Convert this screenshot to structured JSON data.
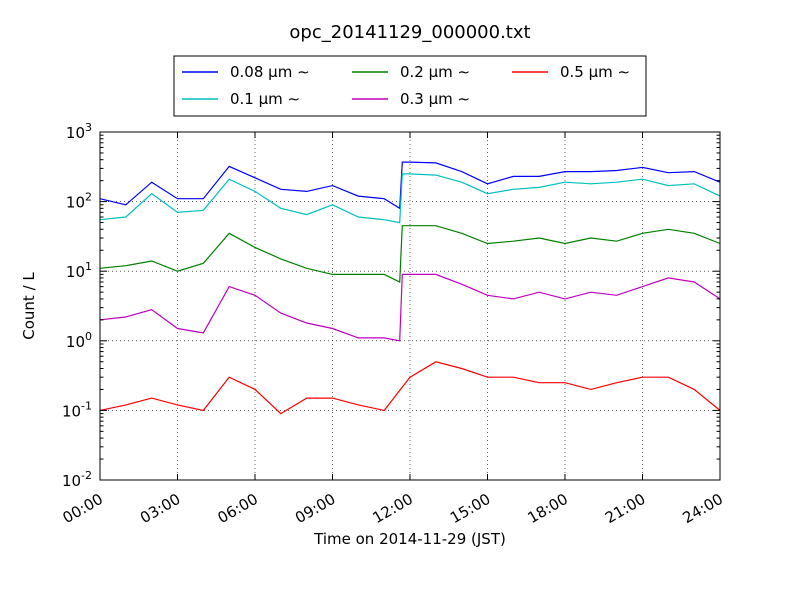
{
  "chart_data": {
    "type": "line",
    "title": "opc_20141129_000000.txt",
    "xlabel": "Time on 2014-11-29 (JST)",
    "ylabel": "Count / L",
    "x_unit": "hours",
    "xlim": [
      0,
      24
    ],
    "ylim": [
      0.01,
      1000
    ],
    "yscale": "log",
    "grid": true,
    "legend_position": "top-center, above plot",
    "x_ticks": [
      {
        "value": 0,
        "label": "00:00"
      },
      {
        "value": 3,
        "label": "03:00"
      },
      {
        "value": 6,
        "label": "06:00"
      },
      {
        "value": 9,
        "label": "09:00"
      },
      {
        "value": 12,
        "label": "12:00"
      },
      {
        "value": 15,
        "label": "15:00"
      },
      {
        "value": 18,
        "label": "18:00"
      },
      {
        "value": 21,
        "label": "21:00"
      },
      {
        "value": 24,
        "label": "24:00"
      }
    ],
    "y_ticks": [
      {
        "value": 0.01,
        "base": "10",
        "exp": "-2"
      },
      {
        "value": 0.1,
        "base": "10",
        "exp": "-1"
      },
      {
        "value": 1,
        "base": "10",
        "exp": "0"
      },
      {
        "value": 10,
        "base": "10",
        "exp": "1"
      },
      {
        "value": 100,
        "base": "10",
        "exp": "2"
      },
      {
        "value": 1000,
        "base": "10",
        "exp": "3"
      }
    ],
    "series": [
      {
        "name": "0.08 μm ∼",
        "color": "#0000ff",
        "x": [
          0,
          1,
          2,
          3,
          4,
          5,
          6,
          7,
          8,
          9,
          10,
          11,
          11.6,
          11.7,
          12,
          13,
          14,
          15,
          16,
          17,
          18,
          19,
          20,
          21,
          22,
          23,
          24
        ],
        "values": [
          110,
          90,
          190,
          110,
          110,
          320,
          220,
          150,
          140,
          170,
          120,
          110,
          80,
          370,
          370,
          360,
          270,
          180,
          230,
          230,
          270,
          270,
          280,
          310,
          260,
          270,
          190
        ]
      },
      {
        "name": "0.1 μm ∼",
        "color": "#00bfbf",
        "x": [
          0,
          1,
          2,
          3,
          4,
          5,
          6,
          7,
          8,
          9,
          10,
          11,
          11.6,
          11.7,
          12,
          13,
          14,
          15,
          16,
          17,
          18,
          19,
          20,
          21,
          22,
          23,
          24
        ],
        "values": [
          55,
          60,
          130,
          70,
          75,
          210,
          140,
          80,
          65,
          90,
          60,
          55,
          50,
          250,
          250,
          240,
          190,
          130,
          150,
          160,
          190,
          180,
          190,
          210,
          170,
          180,
          120
        ]
      },
      {
        "name": "0.2 μm ∼",
        "color": "#008000",
        "x": [
          0,
          1,
          2,
          3,
          4,
          5,
          6,
          7,
          8,
          9,
          10,
          11,
          11.6,
          11.7,
          12,
          13,
          14,
          15,
          16,
          17,
          18,
          19,
          20,
          21,
          22,
          23,
          24
        ],
        "values": [
          11,
          12,
          14,
          10,
          13,
          35,
          22,
          15,
          11,
          9,
          9,
          9,
          7,
          45,
          45,
          45,
          35,
          25,
          27,
          30,
          25,
          30,
          27,
          35,
          40,
          35,
          25
        ]
      },
      {
        "name": "0.3 μm ∼",
        "color": "#bf00bf",
        "x": [
          0,
          1,
          2,
          3,
          4,
          5,
          6,
          7,
          8,
          9,
          10,
          11,
          11.6,
          11.7,
          12,
          13,
          14,
          15,
          16,
          17,
          18,
          19,
          20,
          21,
          22,
          23,
          24
        ],
        "values": [
          2,
          2.2,
          2.8,
          1.5,
          1.3,
          6,
          4.5,
          2.5,
          1.8,
          1.5,
          1.1,
          1.1,
          1.0,
          9,
          9,
          9,
          6.5,
          4.5,
          4,
          5,
          4,
          5,
          4.5,
          6,
          8,
          7,
          4
        ]
      },
      {
        "name": "0.5 μm ∼",
        "color": "#ff0000",
        "x": [
          0,
          1,
          2,
          3,
          4,
          5,
          6,
          7,
          8,
          9,
          10,
          11,
          12,
          13,
          14,
          15,
          16,
          17,
          18,
          19,
          20,
          21,
          22,
          23,
          24
        ],
        "values": [
          0.1,
          0.12,
          0.15,
          0.12,
          0.1,
          0.3,
          0.2,
          0.09,
          0.15,
          0.15,
          0.12,
          0.1,
          0.3,
          0.5,
          0.4,
          0.3,
          0.3,
          0.25,
          0.25,
          0.2,
          0.25,
          0.3,
          0.3,
          0.2,
          0.1
        ]
      }
    ]
  }
}
